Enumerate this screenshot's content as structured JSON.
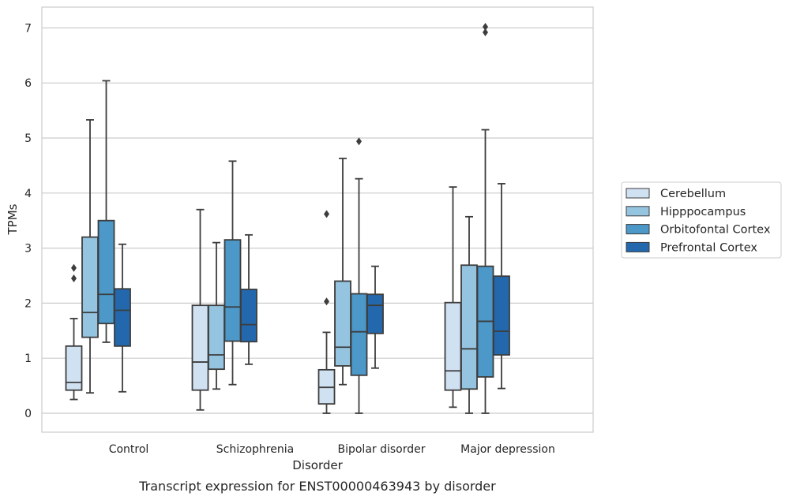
{
  "chart_data": {
    "type": "box",
    "xlabel": "Disorder",
    "ylabel": "TPMs",
    "caption": "Transcript expression for ENST00000463943 by disorder",
    "ylim": [
      -0.35,
      7.35
    ],
    "yticks": [
      "0",
      "1",
      "2",
      "3",
      "4",
      "5",
      "6",
      "7"
    ],
    "grid": "horizontal",
    "legend_placement": "right",
    "categories": [
      "Control",
      "Schizophrenia",
      "Bipolar disorder",
      "Major depression"
    ],
    "series": [
      {
        "name": "Cerebellum",
        "color": "#d0e1f2",
        "boxes": [
          {
            "whislo": 0.25,
            "q1": 0.42,
            "med": 0.56,
            "q3": 1.22,
            "whishi": 1.72,
            "fliers": [
              2.45,
              2.64
            ]
          },
          {
            "whislo": 0.06,
            "q1": 0.42,
            "med": 0.93,
            "q3": 1.96,
            "whishi": 3.7,
            "fliers": []
          },
          {
            "whislo": 0.0,
            "q1": 0.17,
            "med": 0.47,
            "q3": 0.79,
            "whishi": 1.47,
            "fliers": [
              2.03,
              3.62
            ]
          },
          {
            "whislo": 0.11,
            "q1": 0.42,
            "med": 0.77,
            "q3": 2.01,
            "whishi": 4.11,
            "fliers": []
          }
        ]
      },
      {
        "name": "Hipppocampus",
        "color": "#94c4df",
        "boxes": [
          {
            "whislo": 0.37,
            "q1": 1.38,
            "med": 1.83,
            "q3": 3.2,
            "whishi": 5.33,
            "fliers": []
          },
          {
            "whislo": 0.44,
            "q1": 0.8,
            "med": 1.06,
            "q3": 1.96,
            "whishi": 3.1,
            "fliers": []
          },
          {
            "whislo": 0.52,
            "q1": 0.86,
            "med": 1.2,
            "q3": 2.4,
            "whishi": 4.63,
            "fliers": []
          },
          {
            "whislo": 0.0,
            "q1": 0.44,
            "med": 1.17,
            "q3": 2.69,
            "whishi": 3.57,
            "fliers": []
          }
        ]
      },
      {
        "name": "Orbitofontal Cortex",
        "color": "#4b98c9",
        "boxes": [
          {
            "whislo": 1.29,
            "q1": 1.63,
            "med": 2.16,
            "q3": 3.5,
            "whishi": 6.04,
            "fliers": []
          },
          {
            "whislo": 0.52,
            "q1": 1.31,
            "med": 1.93,
            "q3": 3.15,
            "whishi": 4.58,
            "fliers": []
          },
          {
            "whislo": 0.0,
            "q1": 0.69,
            "med": 1.48,
            "q3": 2.17,
            "whishi": 4.26,
            "fliers": [
              4.94
            ]
          },
          {
            "whislo": 0.0,
            "q1": 0.66,
            "med": 1.67,
            "q3": 2.67,
            "whishi": 5.15,
            "fliers": [
              6.92,
              7.02
            ]
          }
        ]
      },
      {
        "name": "Prefrontal Cortex",
        "color": "#2368ad",
        "boxes": [
          {
            "whislo": 0.39,
            "q1": 1.22,
            "med": 1.87,
            "q3": 2.26,
            "whishi": 3.07,
            "fliers": []
          },
          {
            "whislo": 0.89,
            "q1": 1.3,
            "med": 1.61,
            "q3": 2.25,
            "whishi": 3.24,
            "fliers": []
          },
          {
            "whislo": 0.82,
            "q1": 1.45,
            "med": 1.96,
            "q3": 2.16,
            "whishi": 2.67,
            "fliers": []
          },
          {
            "whislo": 0.45,
            "q1": 1.06,
            "med": 1.49,
            "q3": 2.49,
            "whishi": 4.17,
            "fliers": []
          }
        ]
      }
    ]
  }
}
